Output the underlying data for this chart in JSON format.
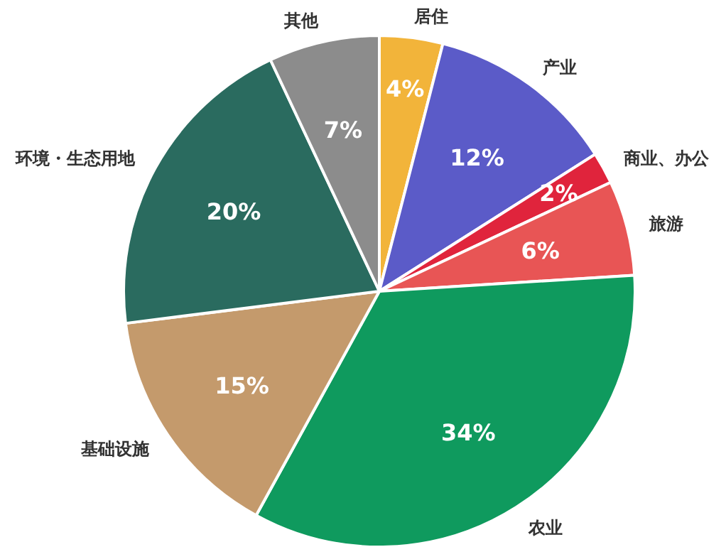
{
  "chart_data": {
    "type": "pie",
    "categories": [
      "居住",
      "产业",
      "商业、办公",
      "旅游",
      "农业",
      "基础设施",
      "环境・生态用地",
      "其他"
    ],
    "values": [
      4,
      12,
      2,
      6,
      34,
      15,
      20,
      7
    ],
    "value_labels": [
      "4%",
      "12%",
      "2%",
      "6%",
      "34%",
      "15%",
      "20%",
      "7%"
    ],
    "colors": [
      "#f2b43a",
      "#5b5bc8",
      "#e0243c",
      "#e85555",
      "#0f9a5e",
      "#c49a6c",
      "#2a6b5f",
      "#8c8c8c"
    ],
    "legend": false
  }
}
